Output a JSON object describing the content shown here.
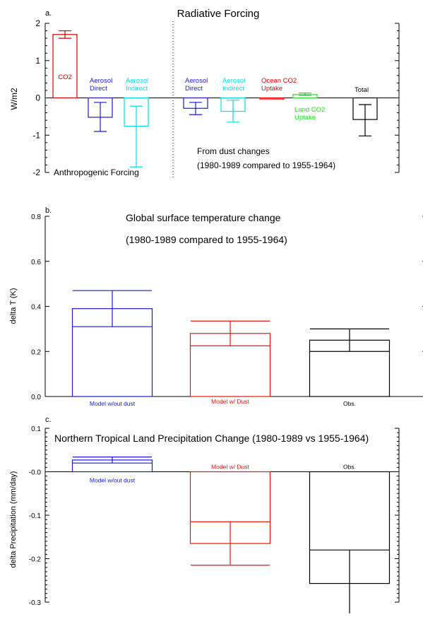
{
  "colors": {
    "co2": "#cc0000",
    "aerosol_direct": "#1a1acc",
    "aerosol_indirect": "#00e0e0",
    "ocean_co2": "#ee0000",
    "land_co2": "#22dd22",
    "total": "#000000",
    "model_no_dust": "#1a1acc",
    "model_dust": "#ee1111",
    "obs": "#000000"
  },
  "chart_data": [
    {
      "panel_label": "a.",
      "type": "bar",
      "title": "Radiative Forcing",
      "ylabel": "W/m2",
      "ylim": [
        -2,
        2
      ],
      "yticks": [
        2,
        1,
        0,
        -1,
        -2
      ],
      "ytick_labels": [
        "2",
        "1",
        "0",
        "-1",
        "-2"
      ],
      "categories": [
        "CO2",
        "Aerosol Direct",
        "Aerosol Indirect",
        "Aerosol Direct",
        "Aerosol Indirect",
        "Ocean CO2 Uptake",
        "Land CO2 Uptake",
        "Total"
      ],
      "values": [
        1.7,
        -0.52,
        -0.76,
        -0.28,
        -0.36,
        -0.03,
        0.09,
        -0.58
      ],
      "err_low": [
        1.6,
        -0.9,
        -1.85,
        -0.45,
        -0.65,
        -0.03,
        0.06,
        -1.02
      ],
      "err_high": [
        1.8,
        -0.12,
        -0.22,
        -0.12,
        -0.06,
        -0.03,
        0.13,
        -0.18
      ],
      "label_lines": [
        [
          "CO2"
        ],
        [
          "Aerosol",
          "Direct"
        ],
        [
          "Aerosol",
          "Indirect"
        ],
        [
          "Aerosol",
          "Direct"
        ],
        [
          "Aerosol",
          "Indirect"
        ],
        [
          "Ocean CO2",
          "Uptake"
        ],
        [
          "Land CO2",
          "Uptake"
        ],
        [
          "Total"
        ]
      ],
      "bar_colors": [
        "#cc0000",
        "#1a1acc",
        "#00e0e0",
        "#1a1acc",
        "#00e0e0",
        "#ee0000",
        "#22dd22",
        "#000000"
      ],
      "annotations": {
        "left_group": "Anthropogenic Forcing",
        "right_group_line1": "From dust changes",
        "right_group_line2": "(1980-1989 compared to 1955-1964)"
      }
    },
    {
      "panel_label": "b.",
      "type": "bar",
      "title": "Global surface temperature change",
      "subtitle": "(1980-1989 compared to 1955-1964)",
      "ylabel": "delta T (K)",
      "ylim": [
        0,
        0.8
      ],
      "yticks": [
        0.0,
        0.2,
        0.4,
        0.6,
        0.8
      ],
      "ytick_labels": [
        "0.0",
        "0.2",
        "0.4",
        "0.6",
        "0.8"
      ],
      "categories": [
        "Model w/out dust",
        "Model w/ Dust",
        "Obs."
      ],
      "values": [
        0.39,
        0.28,
        0.25
      ],
      "err_low": [
        0.31,
        0.225,
        0.2
      ],
      "err_high": [
        0.47,
        0.335,
        0.3
      ],
      "bar_colors": [
        "#1a1acc",
        "#ee1111",
        "#000000"
      ]
    },
    {
      "panel_label": "c.",
      "type": "bar",
      "title": "Northern Tropical Land Precipitation Change (1980-1989 vs 1955-1964)",
      "ylabel": "delta Precipitation (mm/day)",
      "ylim": [
        -0.3,
        0.1
      ],
      "yticks": [
        0.1,
        0.0,
        -0.1,
        -0.2,
        -0.3
      ],
      "ytick_labels": [
        "0.1",
        "-0.0",
        "-0.1",
        "-0.2",
        "-0.3"
      ],
      "categories": [
        "Model w/out dust",
        "Model w/ Dust",
        "Obs."
      ],
      "values": [
        0.027,
        -0.165,
        -0.257
      ],
      "err_low": [
        0.02,
        -0.215,
        -0.34
      ],
      "err_high": [
        0.034,
        -0.115,
        -0.18
      ],
      "bar_colors": [
        "#1a1acc",
        "#ee1111",
        "#000000"
      ]
    }
  ]
}
